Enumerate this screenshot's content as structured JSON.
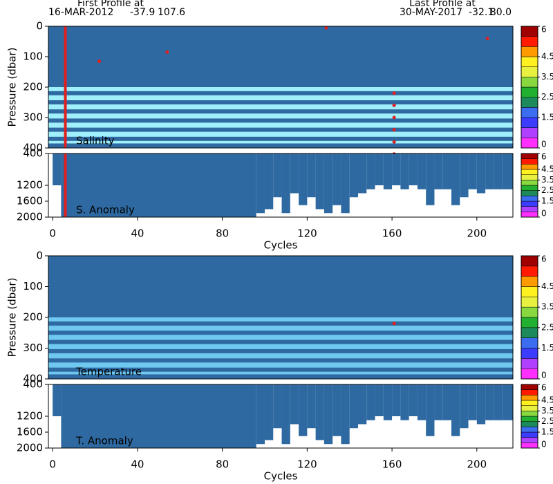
{
  "header": {
    "first": {
      "label": "First Profile at",
      "date": "16-MAR-2012",
      "lat": -37.9,
      "lon": 107.6
    },
    "last": {
      "label": "Last Profile at",
      "date": "30-MAY-2017",
      "lat": -32.1,
      "lon": {
        "value": 80,
        "label": "80.0"
      }
    }
  },
  "chart_data": [
    {
      "type": "contour",
      "label": "Salinity",
      "ylabel": "Pressure (dbar)",
      "xlim": [
        -2,
        217
      ],
      "ylim": [
        400,
        0
      ],
      "yticks": [
        0,
        100,
        200,
        300,
        400
      ],
      "mixed_depth": 200,
      "upper_color": "#2e6aa1",
      "lower_color": "#9ff0fa",
      "stripes": [
        220,
        250,
        280,
        310,
        340,
        370,
        392
      ],
      "qc_color": "#e02020",
      "qc_line_x": 6,
      "qc_points": {
        "x": [
          22,
          54,
          129,
          205,
          161,
          161,
          161,
          161,
          161,
          161
        ],
        "y": [
          115,
          85,
          5,
          40,
          220,
          260,
          300,
          340,
          380,
          420
        ]
      },
      "clim": [
        0,
        6
      ],
      "cticks": [
        6,
        4.5,
        3.5,
        2.5,
        1.5,
        0
      ],
      "ccolors": [
        "#ff30ff",
        "#b040ff",
        "#3c3cff",
        "#3c6cf0",
        "#1c8a5a",
        "#22b030",
        "#8ad840",
        "#e8f040",
        "#fff020",
        "#ff9a00",
        "#ff1a00",
        "#a00000"
      ]
    },
    {
      "type": "anomaly",
      "label": "S. Anomaly",
      "xlabel": "Cycles",
      "xlim": [
        -2,
        217
      ],
      "xticks": [
        0,
        40,
        80,
        120,
        160,
        200
      ],
      "ylim": [
        2000,
        400
      ],
      "yticks": [
        400,
        1200,
        1600,
        2000
      ],
      "fill_color": "#2e6aa1",
      "qc_color": "#e02020",
      "qc_line_x": 6,
      "x": [
        0,
        4,
        96,
        100,
        104,
        108,
        112,
        116,
        120,
        124,
        128,
        132,
        136,
        140,
        144,
        148,
        152,
        156,
        160,
        164,
        168,
        172,
        176,
        180,
        184,
        188,
        192,
        196,
        200,
        204,
        208,
        212
      ],
      "depth": [
        1200,
        2000,
        1900,
        1800,
        1500,
        1900,
        1400,
        1700,
        1500,
        1800,
        1900,
        1700,
        1900,
        1500,
        1400,
        1300,
        1200,
        1300,
        1200,
        1300,
        1200,
        1300,
        1700,
        1300,
        1300,
        1700,
        1500,
        1300,
        1400,
        1300,
        1300,
        1300
      ],
      "clim": [
        0,
        6
      ],
      "cticks": [
        6,
        4.5,
        3.5,
        2.5,
        1.5,
        0
      ],
      "ccolors": [
        "#ff30ff",
        "#b040ff",
        "#3c3cff",
        "#3c6cf0",
        "#1c8a5a",
        "#22b030",
        "#8ad840",
        "#e8f040",
        "#fff020",
        "#ff9a00",
        "#ff1a00",
        "#a00000"
      ]
    },
    {
      "type": "contour",
      "label": "Temperature",
      "ylabel": "Pressure (dbar)",
      "xlim": [
        -2,
        217
      ],
      "ylim": [
        400,
        0
      ],
      "yticks": [
        0,
        100,
        200,
        300,
        400
      ],
      "mixed_depth": 200,
      "upper_color": "#2e6aa1",
      "lower_color": "#6fc8f0",
      "stripes": [
        220,
        250,
        280,
        310,
        340,
        370,
        392
      ],
      "qc_color": "#e02020",
      "qc_points": {
        "x": [
          161
        ],
        "y": [
          220
        ]
      },
      "clim": [
        0,
        6
      ],
      "cticks": [
        6,
        4.5,
        3.5,
        2.5,
        1.5,
        0
      ],
      "ccolors": [
        "#ff30ff",
        "#b040ff",
        "#3c3cff",
        "#3c6cf0",
        "#1c8a5a",
        "#22b030",
        "#8ad840",
        "#e8f040",
        "#fff020",
        "#ff9a00",
        "#ff1a00",
        "#a00000"
      ]
    },
    {
      "type": "anomaly",
      "label": "T. Anomaly",
      "xlabel": "Cycles",
      "xlim": [
        -2,
        217
      ],
      "xticks": [
        0,
        40,
        80,
        120,
        160,
        200
      ],
      "ylim": [
        2000,
        400
      ],
      "yticks": [
        400,
        1200,
        1600,
        2000
      ],
      "fill_color": "#2e6aa1",
      "x": [
        0,
        4,
        96,
        100,
        104,
        108,
        112,
        116,
        120,
        124,
        128,
        132,
        136,
        140,
        144,
        148,
        152,
        156,
        160,
        164,
        168,
        172,
        176,
        180,
        184,
        188,
        192,
        196,
        200,
        204,
        208,
        212
      ],
      "depth": [
        1200,
        2000,
        1900,
        1800,
        1500,
        1900,
        1400,
        1700,
        1500,
        1800,
        1900,
        1700,
        1900,
        1500,
        1400,
        1300,
        1200,
        1300,
        1200,
        1300,
        1200,
        1300,
        1700,
        1300,
        1300,
        1700,
        1500,
        1300,
        1400,
        1300,
        1300,
        1300
      ],
      "clim": [
        0,
        6
      ],
      "cticks": [
        6,
        4.5,
        3.5,
        2.5,
        1.5,
        0
      ],
      "ccolors": [
        "#ff30ff",
        "#b040ff",
        "#3c3cff",
        "#3c6cf0",
        "#1c8a5a",
        "#22b030",
        "#8ad840",
        "#e8f040",
        "#fff020",
        "#ff9a00",
        "#ff1a00",
        "#a00000"
      ]
    }
  ]
}
